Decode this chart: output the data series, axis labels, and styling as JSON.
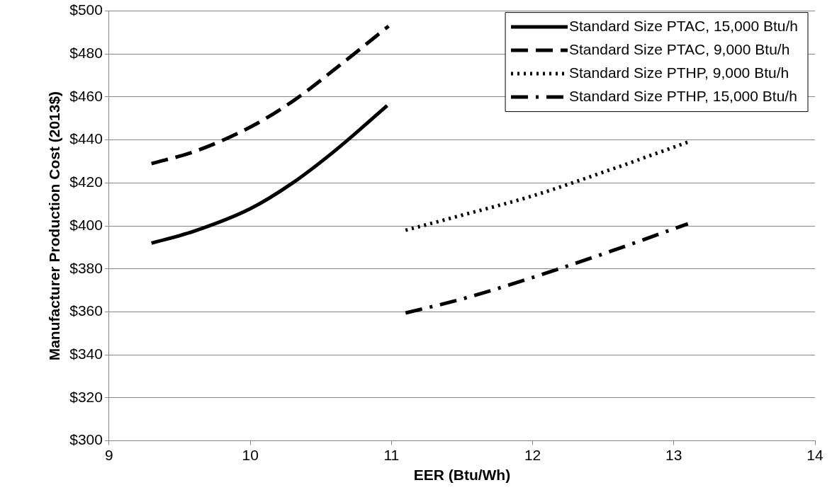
{
  "chart_data": {
    "type": "line",
    "xlabel": "EER (Btu/Wh)",
    "ylabel": "Manufacturer Production Cost (2013$)",
    "xlim": [
      9,
      14
    ],
    "xticks": [
      9,
      10,
      11,
      12,
      13,
      14
    ],
    "ylim": [
      300,
      500
    ],
    "yticks": [
      {
        "value": 300,
        "label": "$300"
      },
      {
        "value": 320,
        "label": "$320"
      },
      {
        "value": 340,
        "label": "$340"
      },
      {
        "value": 360,
        "label": "$360"
      },
      {
        "value": 380,
        "label": "$380"
      },
      {
        "value": 400,
        "label": "$400"
      },
      {
        "value": 420,
        "label": "$420"
      },
      {
        "value": 440,
        "label": "$440"
      },
      {
        "value": 460,
        "label": "$460"
      },
      {
        "value": 480,
        "label": "$480"
      },
      {
        "value": 500,
        "label": "$500"
      }
    ],
    "grid": "y",
    "legend": "top right",
    "marker": "none",
    "series": [
      {
        "name": "Standard Size PTAC, 15,000 Btu/h",
        "color": "#000000",
        "line_style": "solid",
        "x": [
          9.3,
          9.6,
          10,
          10.3,
          10.6,
          10.97
        ],
        "values": [
          392,
          397.5,
          408,
          420,
          435,
          456
        ]
      },
      {
        "name": "Standard Size PTAC, 9,000 Btu/h",
        "color": "#000000",
        "line_style": "dashed",
        "x": [
          9.3,
          9.6,
          10,
          10.3,
          10.6,
          10.98
        ],
        "values": [
          429,
          434.5,
          446,
          458,
          473,
          493
        ]
      },
      {
        "name": "Standard Size PTHP, 9,000 Btu/h",
        "color": "#000000",
        "line_style": "dotted",
        "x": [
          11.1,
          11.5,
          12,
          12.5,
          13.1
        ],
        "values": [
          398,
          405,
          414,
          425,
          439
        ]
      },
      {
        "name": "Standard Size PTHP, 15,000 Btu/h",
        "color": "#000000",
        "line_style": "dashdot",
        "x": [
          11.1,
          11.5,
          12,
          12.5,
          13.1
        ],
        "values": [
          359.5,
          366,
          376,
          387,
          401
        ]
      }
    ]
  }
}
